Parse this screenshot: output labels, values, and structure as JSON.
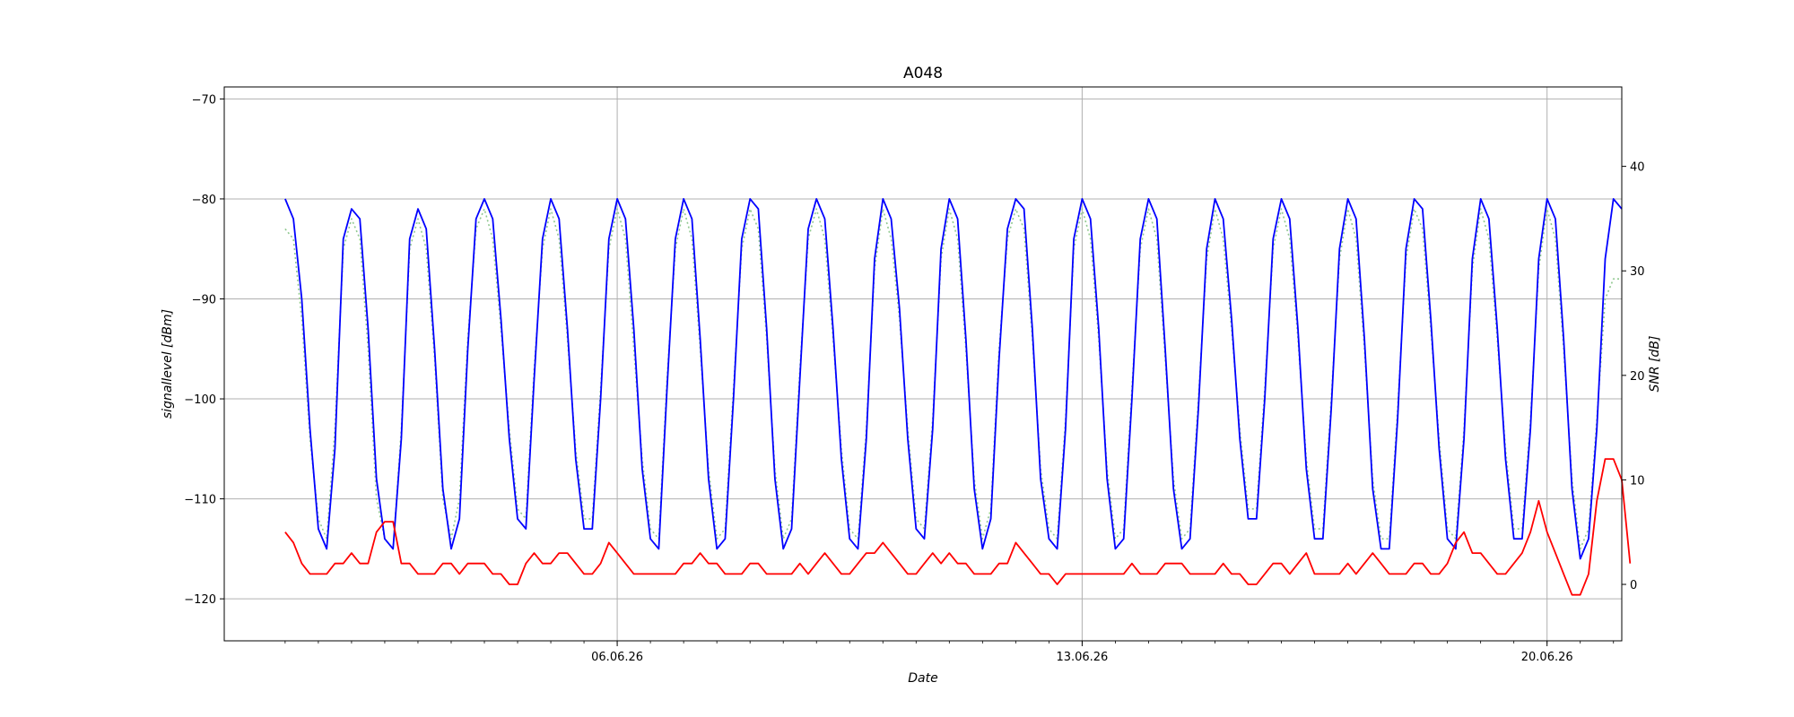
{
  "chart_data": {
    "type": "line",
    "title": "A048",
    "xlabel": "Date",
    "ylabel_left": "signallevel [dBm]",
    "ylabel_right": "SNR [dB]",
    "x_range": [
      "2026-05-31T02:00",
      "2026-06-21T03:00"
    ],
    "ylim_left": [
      -124.2,
      -68.8
    ],
    "ylim_right": [
      -5.4,
      47.6
    ],
    "x_ticks": [
      {
        "date": "2026-06-06",
        "label": "06.06.26"
      },
      {
        "date": "2026-06-13",
        "label": "13.06.26"
      },
      {
        "date": "2026-06-20",
        "label": "20.06.26"
      }
    ],
    "y_ticks_left": [
      -70,
      -80,
      -90,
      -100,
      -110,
      -120
    ],
    "y_ticks_right": [
      0,
      10,
      20,
      30,
      40
    ],
    "grid": true,
    "colors": {
      "signal": "#0000ff",
      "snr": "#ff0000",
      "secondary": "#90c890",
      "grid": "#b0b0b0"
    },
    "series": [
      {
        "axis": "left",
        "color": "#0000ff",
        "style": "solid",
        "x_start": "2026-06-01T00:00",
        "x_step_hours": 3,
        "values": [
          -80,
          -82,
          -90,
          -103,
          -113,
          -115,
          -105,
          -84,
          -81,
          -82,
          -93,
          -108,
          -114,
          -115,
          -104,
          -84,
          -81,
          -83,
          -95,
          -109,
          -115,
          -112,
          -95,
          -82,
          -80,
          -82,
          -92,
          -104,
          -112,
          -113,
          -98,
          -84,
          -80,
          -82,
          -93,
          -106,
          -113,
          -113,
          -100,
          -84,
          -80,
          -82,
          -93,
          -107,
          -114,
          -115,
          -99,
          -84,
          -80,
          -82,
          -94,
          -108,
          -115,
          -114,
          -100,
          -84,
          -80,
          -81,
          -93,
          -108,
          -115,
          -113,
          -98,
          -83,
          -80,
          -82,
          -93,
          -106,
          -114,
          -115,
          -104,
          -86,
          -80,
          -82,
          -91,
          -104,
          -113,
          -114,
          -103,
          -85,
          -80,
          -82,
          -94,
          -109,
          -115,
          -112,
          -96,
          -83,
          -80,
          -81,
          -93,
          -108,
          -114,
          -115,
          -103,
          -84,
          -80,
          -82,
          -93,
          -108,
          -115,
          -114,
          -100,
          -84,
          -80,
          -82,
          -95,
          -109,
          -115,
          -114,
          -101,
          -85,
          -80,
          -82,
          -92,
          -104,
          -112,
          -112,
          -100,
          -84,
          -80,
          -82,
          -93,
          -107,
          -114,
          -114,
          -101,
          -85,
          -80,
          -82,
          -94,
          -109,
          -115,
          -115,
          -102,
          -85,
          -80,
          -81,
          -92,
          -105,
          -114,
          -115,
          -104,
          -86,
          -80,
          -82,
          -93,
          -106,
          -114,
          -114,
          -103,
          -86,
          -80,
          -82,
          -94,
          -109,
          -116,
          -114,
          -103,
          -86,
          -80,
          -81
        ]
      },
      {
        "axis": "left",
        "color": "#90c890",
        "style": "dotted",
        "x_start": "2026-06-01T00:00",
        "x_step_hours": 3,
        "values": [
          -83,
          -84,
          -92,
          -104,
          -112,
          -114,
          -103,
          -85,
          -82,
          -84,
          -95,
          -110,
          -114,
          -115,
          -103,
          -85,
          -82,
          -85,
          -96,
          -110,
          -114,
          -110,
          -94,
          -83,
          -81,
          -84,
          -93,
          -103,
          -111,
          -112,
          -97,
          -85,
          -81,
          -84,
          -94,
          -105,
          -112,
          -112,
          -99,
          -85,
          -81,
          -84,
          -95,
          -106,
          -113,
          -114,
          -98,
          -85,
          -81,
          -84,
          -95,
          -107,
          -114,
          -113,
          -99,
          -85,
          -81,
          -83,
          -94,
          -107,
          -114,
          -112,
          -97,
          -84,
          -81,
          -84,
          -94,
          -105,
          -113,
          -114,
          -103,
          -87,
          -81,
          -84,
          -92,
          -103,
          -112,
          -113,
          -102,
          -86,
          -81,
          -84,
          -95,
          -108,
          -114,
          -111,
          -95,
          -84,
          -81,
          -83,
          -94,
          -107,
          -113,
          -114,
          -102,
          -85,
          -81,
          -84,
          -94,
          -107,
          -114,
          -113,
          -99,
          -85,
          -81,
          -84,
          -96,
          -108,
          -114,
          -113,
          -100,
          -86,
          -81,
          -84,
          -93,
          -103,
          -111,
          -111,
          -99,
          -85,
          -81,
          -84,
          -94,
          -106,
          -113,
          -113,
          -100,
          -86,
          -81,
          -84,
          -95,
          -108,
          -114,
          -114,
          -101,
          -86,
          -81,
          -83,
          -93,
          -104,
          -113,
          -114,
          -103,
          -87,
          -81,
          -84,
          -94,
          -105,
          -113,
          -113,
          -102,
          -87,
          -81,
          -84,
          -95,
          -108,
          -115,
          -113,
          -102,
          -90,
          -88,
          -88
        ]
      },
      {
        "axis": "right",
        "color": "#ff0000",
        "style": "solid",
        "x_start": "2026-06-01T00:00",
        "x_step_hours": 3,
        "values": [
          5,
          4,
          2,
          1,
          1,
          1,
          2,
          2,
          3,
          2,
          2,
          5,
          6,
          6,
          2,
          2,
          1,
          1,
          1,
          2,
          2,
          1,
          2,
          2,
          2,
          1,
          1,
          0,
          0,
          2,
          3,
          2,
          2,
          3,
          3,
          2,
          1,
          1,
          2,
          4,
          3,
          2,
          1,
          1,
          1,
          1,
          1,
          1,
          2,
          2,
          3,
          2,
          2,
          1,
          1,
          1,
          2,
          2,
          1,
          1,
          1,
          1,
          2,
          1,
          2,
          3,
          2,
          1,
          1,
          2,
          3,
          3,
          4,
          3,
          2,
          1,
          1,
          2,
          3,
          2,
          3,
          2,
          2,
          1,
          1,
          1,
          2,
          2,
          4,
          3,
          2,
          1,
          1,
          0,
          1,
          1,
          1,
          1,
          1,
          1,
          1,
          1,
          2,
          1,
          1,
          1,
          2,
          2,
          2,
          1,
          1,
          1,
          1,
          2,
          1,
          1,
          0,
          0,
          1,
          2,
          2,
          1,
          2,
          3,
          1,
          1,
          1,
          1,
          2,
          1,
          2,
          3,
          2,
          1,
          1,
          1,
          2,
          2,
          1,
          1,
          2,
          4,
          5,
          3,
          3,
          2,
          1,
          1,
          2,
          3,
          5,
          8,
          5,
          3,
          1,
          -1,
          -1,
          1,
          8,
          12,
          12,
          10,
          2
        ]
      }
    ]
  }
}
